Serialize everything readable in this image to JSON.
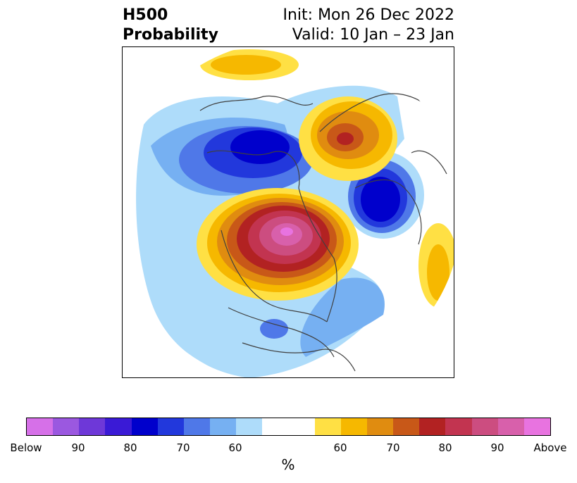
{
  "title": {
    "left_line1": "H500",
    "left_line2": "Probability",
    "right_line1": "Init: Mon 26 Dec 2022",
    "right_line2": "Valid: 10 Jan – 23 Jan"
  },
  "map": {
    "projection": "polar-stereographic-north",
    "coastlines_color": "#404040"
  },
  "colorbar": {
    "colors": [
      "#d670e8",
      "#9b58e0",
      "#6e38d8",
      "#3a1ad6",
      "#0000cc",
      "#2238dc",
      "#4f78e8",
      "#76b0f2",
      "#aedcfa",
      "#ffffff",
      "#ffe044",
      "#f6b800",
      "#e08c10",
      "#c85818",
      "#b22222",
      "#c23450",
      "#cc4d80",
      "#d860ab",
      "#e873e0"
    ],
    "ticks": [
      "Below",
      "90",
      "80",
      "70",
      "60",
      "60",
      "70",
      "80",
      "90",
      "Above"
    ],
    "label": "%"
  }
}
